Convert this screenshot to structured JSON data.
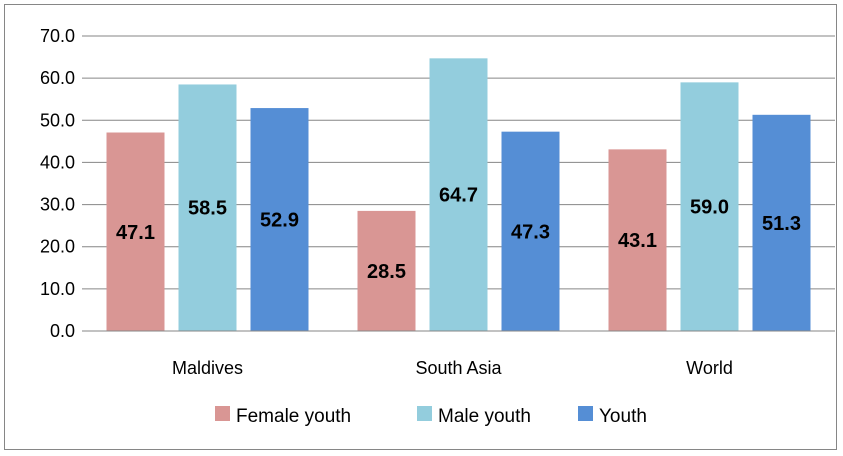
{
  "chart_data": {
    "type": "bar",
    "categories": [
      "Maldives",
      "South Asia",
      "World"
    ],
    "series": [
      {
        "name": "Female youth",
        "values": [
          47.1,
          28.5,
          43.1
        ],
        "color": "#d99694"
      },
      {
        "name": "Male youth",
        "values": [
          58.5,
          64.7,
          59.0
        ],
        "color": "#93cddd"
      },
      {
        "name": "Youth",
        "values": [
          52.9,
          47.3,
          51.3
        ],
        "color": "#558ed5"
      }
    ],
    "y_ticks": [
      "0.0",
      "10.0",
      "20.0",
      "30.0",
      "40.0",
      "50.0",
      "60.0",
      "70.0"
    ],
    "ylim": [
      0,
      70
    ],
    "grid": true,
    "legend_position": "bottom",
    "data_label_format": "one-decimal"
  }
}
